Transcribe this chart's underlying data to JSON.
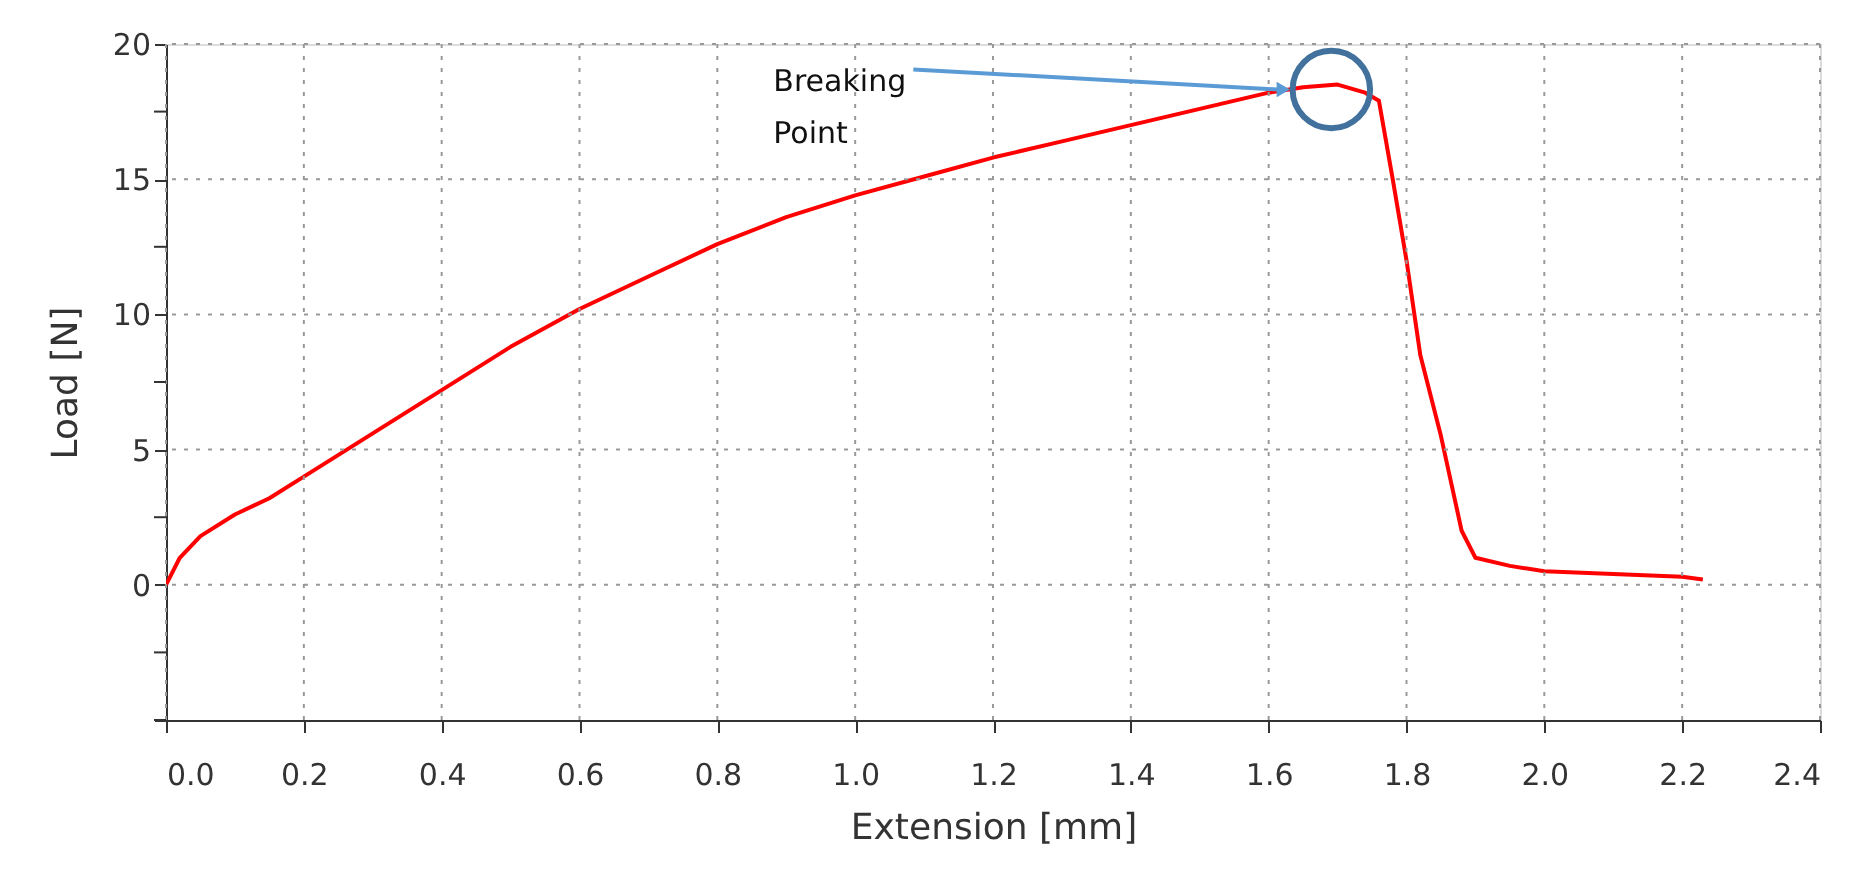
{
  "chart_data": {
    "type": "line",
    "xlabel": "Extension [mm]",
    "ylabel": "Load [N]",
    "x": [
      0,
      0.02,
      0.05,
      0.1,
      0.15,
      0.2,
      0.3,
      0.4,
      0.5,
      0.6,
      0.7,
      0.8,
      0.9,
      1.0,
      1.1,
      1.2,
      1.3,
      1.4,
      1.5,
      1.6,
      1.65,
      1.7,
      1.74,
      1.76,
      1.78,
      1.8,
      1.82,
      1.85,
      1.88,
      1.9,
      1.95,
      2.0,
      2.1,
      2.2,
      2.23
    ],
    "series": [
      {
        "color": "#ff0000",
        "values": [
          0,
          1.0,
          1.8,
          2.6,
          3.2,
          4.0,
          5.6,
          7.2,
          8.8,
          10.2,
          11.4,
          12.6,
          13.6,
          14.4,
          15.1,
          15.8,
          16.4,
          17.0,
          17.6,
          18.2,
          18.4,
          18.5,
          18.2,
          17.9,
          15.0,
          12.0,
          8.5,
          5.5,
          2.0,
          1.0,
          0.7,
          0.5,
          0.4,
          0.3,
          0.2
        ]
      }
    ],
    "xlim": [
      0,
      2.4
    ],
    "ylim": [
      -5,
      20
    ],
    "xticks": [
      "0.0",
      0.2,
      0.4,
      0.6,
      0.8,
      "1.0",
      1.2,
      1.4,
      1.6,
      1.8,
      "2.0",
      2.2,
      2.4
    ],
    "yticks": [
      {
        "value": -5,
        "label": null
      },
      {
        "value": -2.5,
        "label": null
      },
      0,
      {
        "value": 2.5,
        "label": null
      },
      5,
      {
        "value": 7.5,
        "label": null
      },
      10,
      {
        "value": 12.5,
        "label": null
      },
      15,
      {
        "value": 17.5,
        "label": null
      },
      20
    ],
    "grid": true,
    "marker": "none",
    "line_style": "solid",
    "annotations": [
      {
        "text": "Breaking Point",
        "x": 1.63,
        "y": 18.32
      }
    ]
  }
}
